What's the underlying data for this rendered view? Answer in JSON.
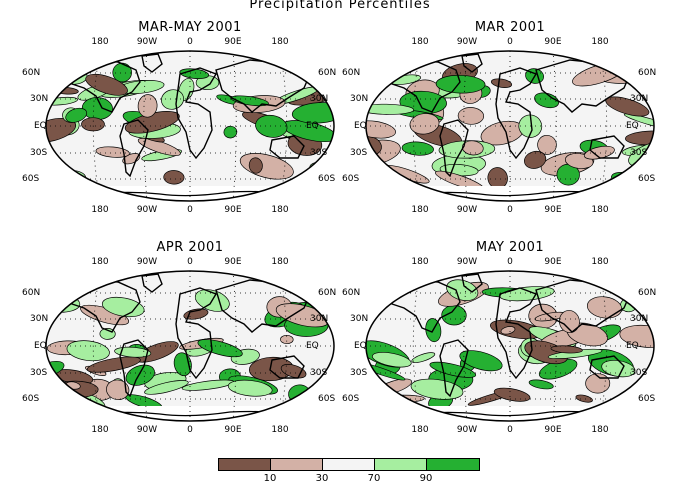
{
  "title": "Precipitation Percentiles",
  "lon_labels": [
    "180",
    "90W",
    "0",
    "90E",
    "180"
  ],
  "lat_labels_left": [
    "60N",
    "30N",
    "EQ",
    "30S",
    "60S"
  ],
  "lat_labels_right": [
    "60N",
    "30N",
    "EQ",
    "30S",
    "60S"
  ],
  "panels": [
    {
      "title": "MAR-MAY 2001"
    },
    {
      "title": "MAR 2001"
    },
    {
      "title": "APR 2001"
    },
    {
      "title": "MAY 2001"
    }
  ],
  "legend": {
    "ticks": [
      "10",
      "30",
      "70",
      "90"
    ],
    "colors": [
      "#7a5548",
      "#d3b1a6",
      "#f4f4f4",
      "#a6eea0",
      "#25b032"
    ]
  }
}
